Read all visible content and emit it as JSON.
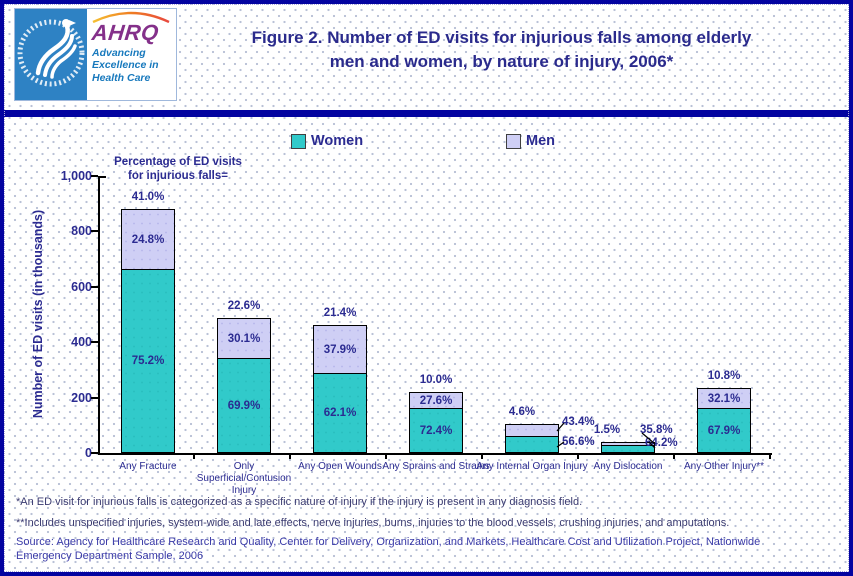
{
  "header": {
    "title_line1": "Figure 2. Number of ED visits for injurious falls among elderly",
    "title_line2": "men and women, by nature of injury, 2006*",
    "logo": {
      "ahrq_acronym": "AHRQ",
      "tagline": [
        "Advancing",
        "Excellence in",
        "Health Care"
      ]
    }
  },
  "annotation": {
    "line1": "Percentage of ED visits",
    "line2": "for injurious falls="
  },
  "chart_data": {
    "type": "bar",
    "stacked": true,
    "title": "Figure 2. Number of ED visits for injurious falls among elderly men and women, by nature of injury, 2006*",
    "ylabel": "Number of ED visits (in thousands)",
    "ylim": [
      0,
      1000
    ],
    "yticks": [
      {
        "value": 0,
        "label": "0"
      },
      {
        "value": 200,
        "label": "200"
      },
      {
        "value": 400,
        "label": "400"
      },
      {
        "value": 600,
        "label": "600"
      },
      {
        "value": 800,
        "label": "800"
      },
      {
        "value": 1000,
        "label": "1,000"
      }
    ],
    "legend_position": "top",
    "categories": [
      "Any Fracture",
      "Only Superficial/Contusion Injury",
      "Any Open Wounds",
      "Any Sprains and Strains",
      "Any Internal Organ Injury",
      "Any Dislocation",
      "Any Other Injury**"
    ],
    "series": [
      {
        "name": "Women",
        "color": "#31CACA",
        "values_thousands": [
          657,
          337,
          283,
          154,
          55,
          21,
          156
        ],
        "pct_labels": [
          "75.2%",
          "69.9%",
          "62.1%",
          "72.4%",
          "56.6%",
          "64.2%",
          "67.9%"
        ]
      },
      {
        "name": "Men",
        "color": "#CFCFF5",
        "values_thousands": [
          217,
          145,
          173,
          59,
          43,
          11,
          74
        ],
        "pct_labels": [
          "24.8%",
          "30.1%",
          "37.9%",
          "27.6%",
          "43.4%",
          "35.8%",
          "32.1%"
        ]
      }
    ],
    "total_pct_labels": [
      "41.0%",
      "22.6%",
      "21.4%",
      "10.0%",
      "4.6%",
      "1.5%",
      "10.8%"
    ],
    "pct_label_placement": [
      "inside",
      "inside",
      "inside",
      "inside",
      "leader",
      "leader",
      "inside"
    ]
  },
  "footnotes": {
    "note1": "*An ED visit for injurious falls is categorized as a specific nature of injury if the injury is present in any diagnosis field.",
    "note2": "**Includes unspecified injuries, system-wide and late effects, nerve injuries, burns, injuries to the blood vessels, crushing injuries, and amputations.",
    "source": "Source: Agency for Healthcare Research and Quality, Center for Delivery, Organization, and Markets, Healthcare Cost and Utilization Project, Nationwide Emergency Department Sample, 2006"
  },
  "colors": {
    "women": "#31CACA",
    "men": "#CFCFF5",
    "frame_blue": "#0303A0",
    "navy_text": "#2B2B91",
    "ahrq_purple": "#84308A",
    "tagline_blue": "#1879BD",
    "hhs_blue": "#2E82C4"
  }
}
